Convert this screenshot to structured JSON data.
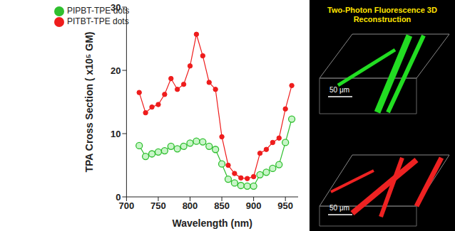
{
  "chart_data": {
    "type": "line",
    "x_label": "Wavelength (nm)",
    "y_label": "TPA Cross Section ( x10⁵ GM)",
    "x": [
      720,
      730,
      740,
      750,
      760,
      770,
      780,
      790,
      800,
      810,
      820,
      830,
      840,
      850,
      860,
      870,
      880,
      890,
      900,
      910,
      920,
      930,
      940,
      950,
      960
    ],
    "series": [
      {
        "name": "PIPBT-TPE dots",
        "color": "#2fbf2f",
        "marker": "circle",
        "values": [
          8.1,
          6.4,
          6.8,
          7.1,
          7.3,
          8.0,
          7.6,
          8.0,
          8.5,
          8.8,
          8.7,
          8.0,
          7.5,
          5.2,
          2.8,
          2.2,
          1.8,
          1.7,
          1.7,
          3.5,
          3.9,
          4.5,
          5.1,
          8.6,
          12.3
        ]
      },
      {
        "name": "PITBT-TPE dots",
        "color": "#ee1c1c",
        "marker": "dot",
        "values": [
          16.5,
          13.3,
          14.2,
          14.6,
          16.2,
          18.7,
          17.0,
          17.8,
          20.7,
          25.7,
          22.3,
          18.1,
          17.0,
          9.5,
          5.0,
          3.7,
          3.0,
          2.9,
          3.2,
          6.9,
          7.5,
          8.6,
          9.3,
          13.9,
          17.6
        ]
      }
    ],
    "xlim": [
      700,
      970
    ],
    "xticks": [
      700,
      750,
      800,
      850,
      900,
      950
    ],
    "ylim": [
      0,
      30
    ],
    "yticks": [
      0,
      10,
      20,
      30
    ],
    "grid": false,
    "legend": "upper left",
    "annotations": [
      "Two-Photon Fluorescence 3D Reconstruction",
      "50 μm",
      "50 μm"
    ]
  }
}
